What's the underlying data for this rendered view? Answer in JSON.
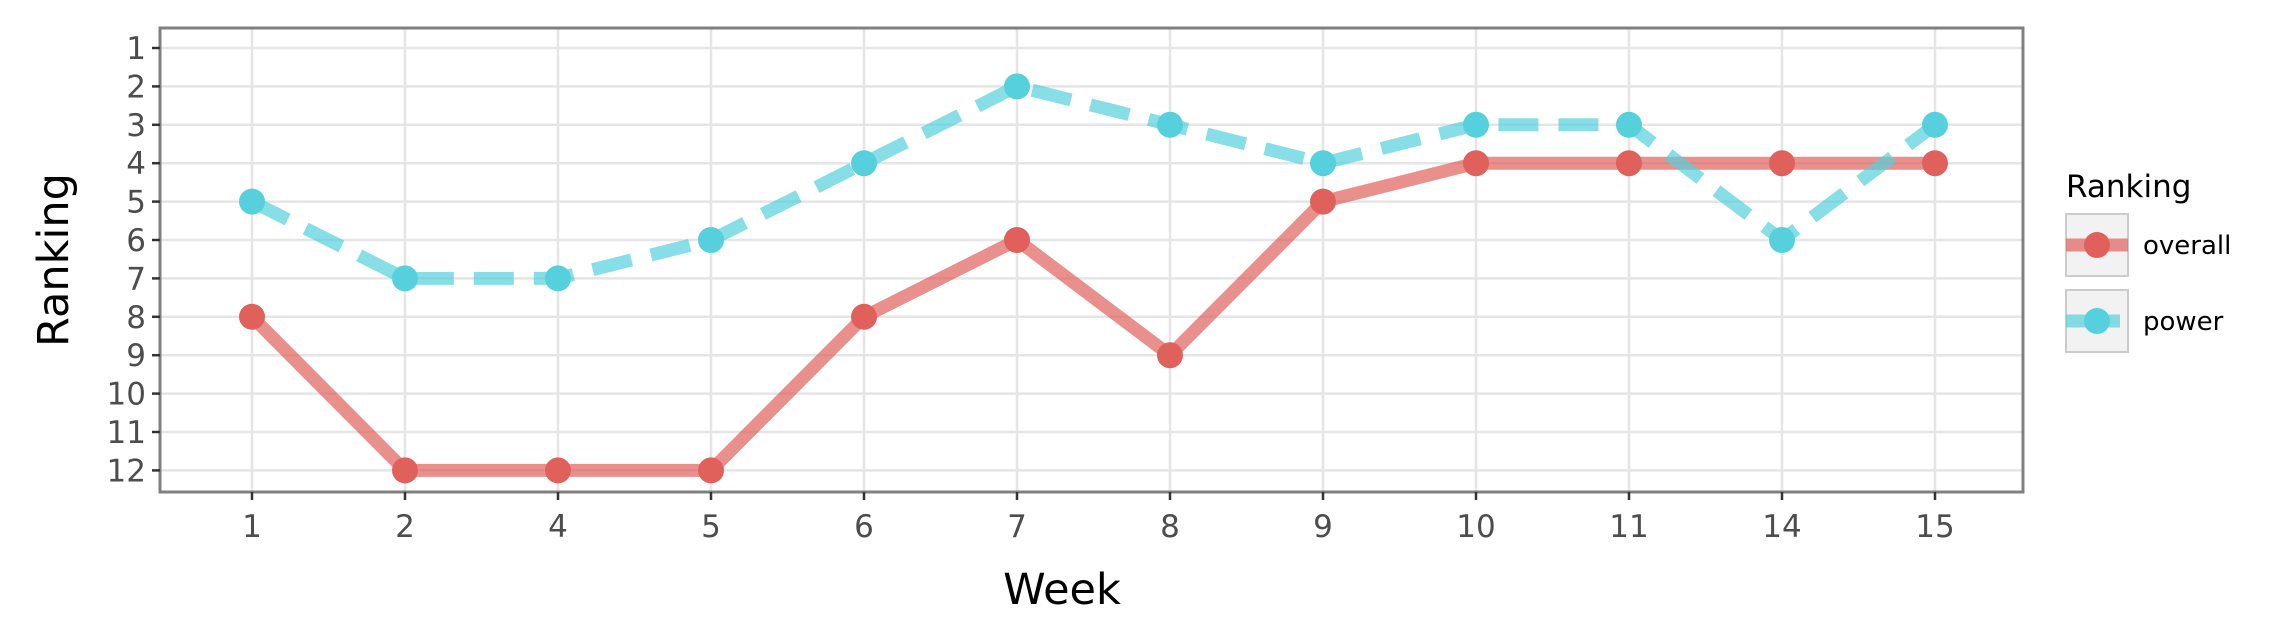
{
  "chart_data": {
    "type": "line",
    "xlabel": "Week",
    "ylabel": "Ranking",
    "categories": [
      "1",
      "2",
      "4",
      "5",
      "6",
      "7",
      "8",
      "9",
      "10",
      "11",
      "14",
      "15"
    ],
    "y_ticks": [
      1,
      2,
      3,
      4,
      5,
      6,
      7,
      8,
      9,
      10,
      11,
      12
    ],
    "ylim": [
      1,
      12
    ],
    "y_reversed": true,
    "grid": true,
    "legend": {
      "title": "Ranking",
      "position": "right"
    },
    "series": [
      {
        "name": "overall",
        "color": "#e0615c",
        "line_style": "solid",
        "values": [
          8,
          12,
          12,
          12,
          8,
          6,
          9,
          5,
          4,
          4,
          4,
          4
        ]
      },
      {
        "name": "power",
        "color": "#56d0dc",
        "line_style": "dashed",
        "values": [
          5,
          7,
          7,
          6,
          4,
          2,
          3,
          4,
          3,
          3,
          6,
          3
        ]
      }
    ]
  }
}
